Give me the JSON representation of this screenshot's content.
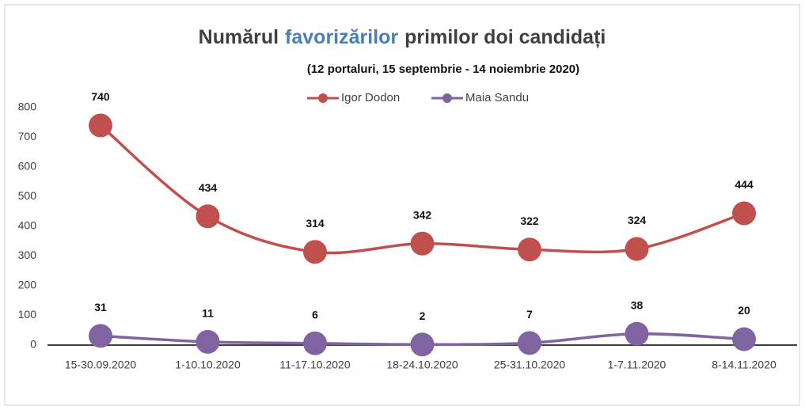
{
  "chart_data": {
    "type": "line",
    "title": [
      "Numărul",
      "favorizărilor",
      "primilor doi candidați"
    ],
    "title_highlight_color": "#4a7ebb",
    "subtitle": "(12 portaluri,  15  septembrie - 14 noiembrie 2020)",
    "categories": [
      "15-30.09.2020",
      "1-10.10.2020",
      "11-17.10.2020",
      "18-24.10.2020",
      "25-31.10.2020",
      "1-7.11.2020",
      "8-14.11.2020"
    ],
    "series": [
      {
        "name": "Igor Dodon",
        "color": "#c0504d",
        "values": [
          740,
          434,
          314,
          342,
          322,
          324,
          444
        ]
      },
      {
        "name": "Maia Sandu",
        "color": "#8064a2",
        "values": [
          31,
          11,
          6,
          2,
          7,
          38,
          20
        ]
      }
    ],
    "ylim": [
      0,
      800
    ],
    "yticks": [
      0,
      100,
      200,
      300,
      400,
      500,
      600,
      700,
      800
    ],
    "grid": false,
    "legend": "top",
    "smooth": true
  }
}
